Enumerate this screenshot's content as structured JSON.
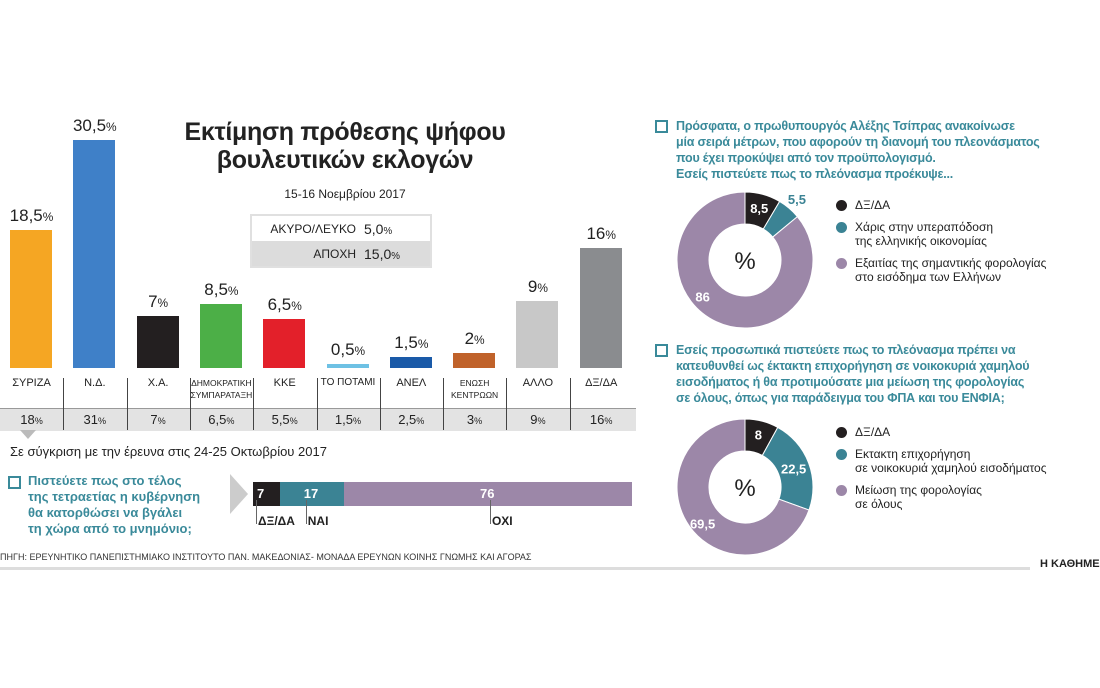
{
  "chart_data": [
    {
      "type": "bar",
      "title": "Εκτίμηση πρόθεσης ψήφου βουλευτικών εκλογών",
      "subtitle": "15-16 Νοεμβρίου 2017",
      "categories": [
        "ΣΥΡΙΖΑ",
        "Ν.Δ.",
        "Χ.Α.",
        "ΔΗΜΟΚΡΑΤΙΚΗ ΣΥΜΠΑΡΑΤΑΞΗ",
        "ΚΚΕ",
        "ΤΟ ΠΟΤΑΜΙ",
        "ΑΝΕΛ",
        "ΕΝΩΣΗ ΚΕΝΤΡΩΩΝ",
        "ΑΛΛΟ",
        "ΔΞ/ΔΑ"
      ],
      "values": [
        18.5,
        30.5,
        7,
        8.5,
        6.5,
        0.5,
        1.5,
        2,
        9,
        16
      ],
      "value_labels": [
        "18,5",
        "30,5",
        "7",
        "8,5",
        "6,5",
        "0,5",
        "1,5",
        "2",
        "9",
        "16"
      ],
      "colors": [
        "#f5a623",
        "#3f80c8",
        "#231f20",
        "#4caf47",
        "#e3202a",
        "#6ec1e4",
        "#1a5aa8",
        "#c0622a",
        "#c8c8c8",
        "#8a8c8f"
      ],
      "previous_label": "Σε σύγκριση με την έρευνα στις 24-25 Οκτωβρίου 2017",
      "previous_values": [
        "18",
        "31",
        "7",
        "6,5",
        "5,5",
        "1,5",
        "2,5",
        "3",
        "9",
        "16"
      ],
      "extra": [
        {
          "label": "ΑΚΥΡΟ/ΛΕΥΚΟ",
          "value": "5,0"
        },
        {
          "label": "ΑΠΟΧΗ",
          "value": "15,0"
        }
      ],
      "percent_sign": "%",
      "ylim": [
        0,
        32
      ]
    },
    {
      "type": "bar",
      "stacked": true,
      "question": [
        "Πιστεύετε πως στο τέλος",
        "της τετραετίας η κυβέρνηση",
        "θα κατορθώσει να βγάλει",
        "τη χώρα από το μνημόνιο;"
      ],
      "categories": [
        "ΔΞ/ΔΑ",
        "ΝΑΙ",
        "ΟΧΙ"
      ],
      "values": [
        7,
        17,
        76
      ],
      "colors": [
        "#231f20",
        "#3b8394",
        "#9c87a8"
      ]
    },
    {
      "type": "pie",
      "donut": true,
      "question": [
        "Πρόσφατα, ο πρωθυπουργός Αλέξης Τσίπρας ανακοίνωσε",
        "μία σειρά μέτρων, που αφορούν τη διανομή του πλεονάσματος",
        "που έχει προκύψει από τον προϋπολογισμό.",
        "Εσείς πιστεύετε πως το πλεόνασμα προέκυψε..."
      ],
      "center_label": "%",
      "labels": [
        [
          "ΔΞ/ΔΑ"
        ],
        [
          "Χάρις στην υπεραπόδοση",
          "της ελληνικής οικονομίας"
        ],
        [
          "Εξαιτίας της σημαντικής φορολογίας",
          "στο εισόδημα των Ελλήνων"
        ]
      ],
      "values": [
        8.5,
        5.5,
        86
      ],
      "value_labels": [
        "8,5",
        "5,5",
        "86"
      ],
      "colors": [
        "#231f20",
        "#3b8394",
        "#9c87a8"
      ]
    },
    {
      "type": "pie",
      "donut": true,
      "question": [
        "Εσείς προσωπικά πιστεύετε πως το πλεόνασμα πρέπει να",
        "κατευθυνθεί ως έκτακτη επιχορήγηση σε νοικοκυριά χαμηλού",
        "εισοδήματος ή θα προτιμούσατε μια μείωση της φορολογίας",
        "σε όλους, όπως για παράδειγμα του ΦΠΑ και του ΕΝΦΙΑ;"
      ],
      "center_label": "%",
      "labels": [
        [
          "ΔΞ/ΔΑ"
        ],
        [
          "Εκτακτη επιχορήγηση",
          "σε νοικοκυριά χαμηλού εισοδήματος"
        ],
        [
          "Μείωση της φορολογίας",
          "σε όλους"
        ]
      ],
      "values": [
        8,
        22.5,
        69.5
      ],
      "value_labels": [
        "8",
        "22,5",
        "69,5"
      ],
      "colors": [
        "#231f20",
        "#3b8394",
        "#9c87a8"
      ]
    }
  ],
  "source": "ΠΗΓΗ: ΕΡΕΥΝΗΤΙΚΟ ΠΑΝΕΠΙΣΤΗΜΙΑΚΟ ΙΝΣΤΙΤΟΥΤΟ ΠΑΝ. ΜΑΚΕΔΟΝΙΑΣ- ΜΟΝΑΔΑ ΕΡΕΥΝΩΝ ΚΟΙΝΗΣ ΓΝΩΜΗΣ ΚΑΙ ΑΓΟΡΑΣ",
  "brand": "Η ΚΑΘΗΜΕΡΙΝΗ"
}
